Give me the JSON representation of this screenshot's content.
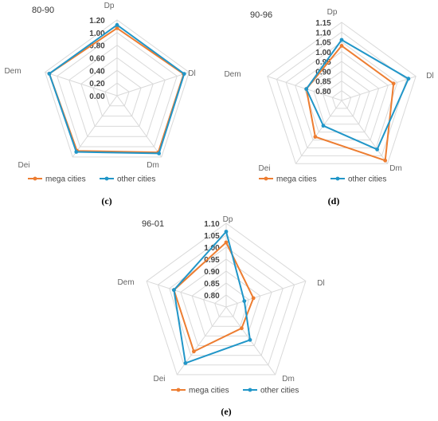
{
  "colors": {
    "mega": "#ED7D31",
    "other": "#2196C8",
    "grid": "#D9D9D9"
  },
  "chart_data": [
    {
      "type": "radar",
      "period": "80-90",
      "caption": "(c)",
      "axes": [
        "Dp",
        "Dl",
        "Dm",
        "Dei",
        "Dem"
      ],
      "ticks": [
        "0.00",
        "0.20",
        "0.40",
        "0.60",
        "0.80",
        "1.00",
        "1.20"
      ],
      "rlim": [
        0,
        1.2
      ],
      "series": [
        {
          "name": "mega cities",
          "values": [
            1.07,
            1.11,
            1.11,
            1.08,
            1.13
          ]
        },
        {
          "name": "other cities",
          "values": [
            1.12,
            1.12,
            1.13,
            1.1,
            1.13
          ]
        }
      ]
    },
    {
      "type": "radar",
      "period": "90-96",
      "caption": "(d)",
      "axes": [
        "Dp",
        "Dl",
        "Dm",
        "Dei",
        "Dem"
      ],
      "ticks": [
        "0.80",
        "0.85",
        "0.90",
        "0.95",
        "1.00",
        "1.05",
        "1.10",
        "1.15"
      ],
      "rlim": [
        0.75,
        1.15
      ],
      "series": [
        {
          "name": "mega cities",
          "values": [
            1.03,
            1.03,
            1.13,
            0.98,
            0.94
          ]
        },
        {
          "name": "other cities",
          "values": [
            1.06,
            1.11,
            1.06,
            0.91,
            0.94
          ]
        }
      ]
    },
    {
      "type": "radar",
      "period": "96-01",
      "caption": "(e)",
      "axes": [
        "Dp",
        "Dl",
        "Dm",
        "Dei",
        "Dem"
      ],
      "ticks": [
        "0.80",
        "0.85",
        "0.90",
        "0.95",
        "1.00",
        "1.05",
        "1.10"
      ],
      "rlim": [
        0.75,
        1.1
      ],
      "series": [
        {
          "name": "mega cities",
          "values": [
            1.02,
            0.87,
            0.86,
            0.98,
            0.98
          ]
        },
        {
          "name": "other cities",
          "values": [
            1.065,
            0.83,
            0.92,
            1.04,
            0.98
          ]
        }
      ]
    }
  ],
  "legend": {
    "mega": "mega cities",
    "other": "other cities"
  }
}
